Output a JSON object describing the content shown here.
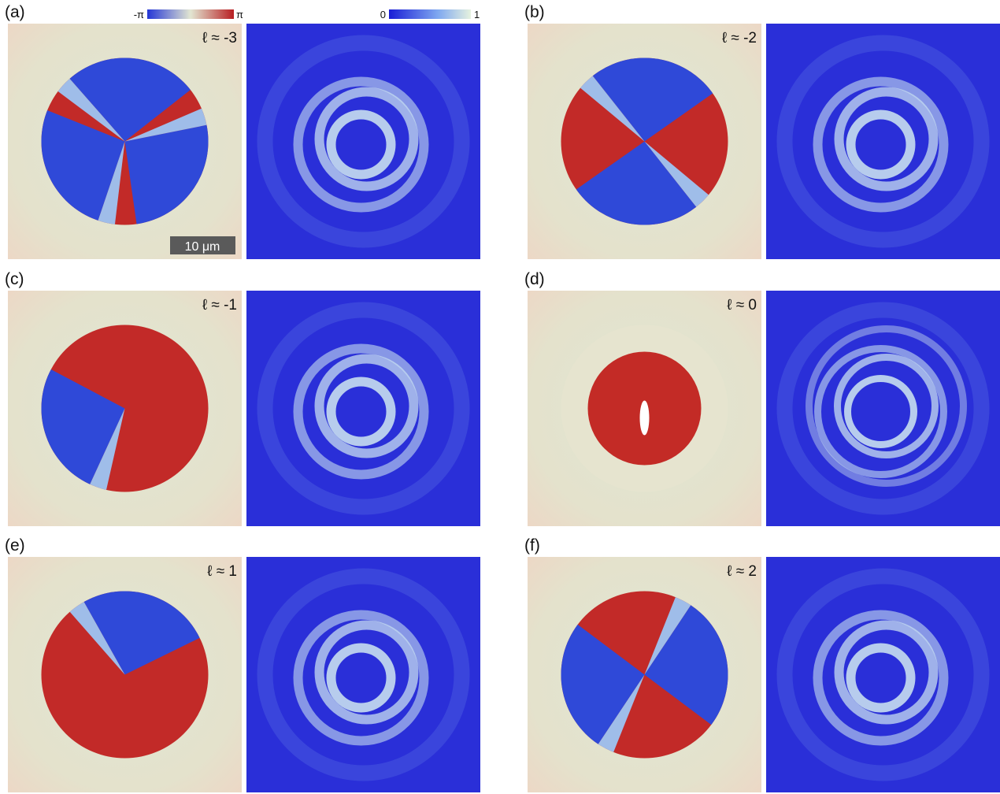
{
  "colorbars": {
    "phase": {
      "min": "-π",
      "max": "π"
    },
    "intensity": {
      "min": "0",
      "max": "1"
    }
  },
  "scale_bar": "10 μm",
  "panels": [
    {
      "label": "(a)",
      "ell": "ℓ ≈ -3"
    },
    {
      "label": "(b)",
      "ell": "ℓ ≈ -2"
    },
    {
      "label": "(c)",
      "ell": "ℓ ≈ -1"
    },
    {
      "label": "(d)",
      "ell": "ℓ ≈ 0"
    },
    {
      "label": "(e)",
      "ell": "ℓ ≈ 1"
    },
    {
      "label": "(f)",
      "ell": "ℓ ≈ 2"
    }
  ]
}
